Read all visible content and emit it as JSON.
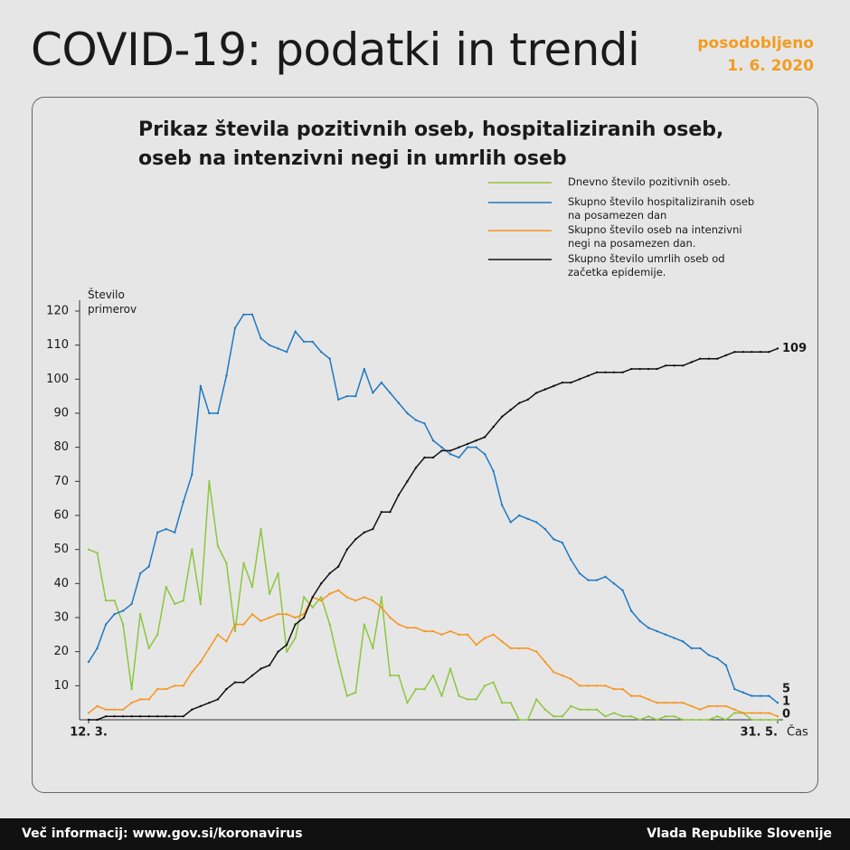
{
  "header": {
    "title": "COVID-19: podatki in trendi",
    "updated_label": "posodobljeno",
    "updated_date": "1. 6. 2020"
  },
  "chart_data": {
    "type": "line",
    "title": "Prikaz števila pozitivnih oseb, hospitaliziranih oseb, oseb na intenzivni negi in umrlih oseb",
    "y_label": "Število primerov",
    "x_label": "Čas",
    "categories": [
      "12. 3.",
      null,
      null,
      null,
      null,
      null,
      null,
      null,
      null,
      null,
      null,
      null,
      null,
      null,
      null,
      null,
      null,
      null,
      null,
      null,
      null,
      null,
      null,
      null,
      null,
      null,
      null,
      null,
      null,
      null,
      null,
      null,
      null,
      null,
      null,
      null,
      null,
      null,
      null,
      null,
      null,
      null,
      null,
      null,
      null,
      null,
      null,
      null,
      null,
      null,
      null,
      null,
      null,
      null,
      null,
      null,
      null,
      null,
      null,
      null,
      null,
      null,
      null,
      null,
      null,
      null,
      null,
      null,
      null,
      null,
      null,
      null,
      null,
      null,
      null,
      null,
      null,
      null,
      null,
      null,
      "31. 5."
    ],
    "ylim": [
      0,
      120
    ],
    "yticks": [
      10,
      20,
      30,
      40,
      50,
      60,
      70,
      80,
      90,
      100,
      110,
      120
    ],
    "series": [
      {
        "name": "Dnevno število pozitivnih oseb.",
        "color": "#8dc63f",
        "values": [
          50,
          49,
          35,
          35,
          28,
          9,
          31,
          21,
          25,
          39,
          34,
          35,
          50,
          34,
          70,
          51,
          46,
          26,
          46,
          39,
          56,
          37,
          43,
          20,
          24,
          36,
          33,
          36,
          28,
          17,
          7,
          8,
          28,
          21,
          36,
          13,
          13,
          5,
          9,
          9,
          13,
          7,
          15,
          7,
          6,
          6,
          10,
          11,
          5,
          5,
          0,
          0,
          6,
          3,
          1,
          1,
          4,
          3,
          3,
          3,
          1,
          2,
          1,
          1,
          0,
          1,
          0,
          1,
          1,
          0,
          0,
          0,
          0,
          1,
          0,
          2,
          2,
          0,
          0,
          0,
          0
        ]
      },
      {
        "name": "Skupno število hospitaliziranih oseb na posamezen dan",
        "color": "#1f78c1",
        "values": [
          17,
          21,
          28,
          31,
          32,
          34,
          43,
          45,
          55,
          56,
          55,
          64,
          72,
          98,
          90,
          90,
          101,
          115,
          119,
          119,
          112,
          110,
          109,
          108,
          114,
          111,
          111,
          108,
          106,
          94,
          95,
          95,
          103,
          96,
          99,
          96,
          93,
          90,
          88,
          87,
          82,
          80,
          78,
          77,
          80,
          80,
          78,
          73,
          63,
          58,
          60,
          59,
          58,
          56,
          53,
          52,
          47,
          43,
          41,
          41,
          42,
          40,
          38,
          32,
          29,
          27,
          26,
          25,
          24,
          23,
          21,
          21,
          19,
          18,
          16,
          9,
          8,
          7,
          7,
          7,
          5
        ]
      },
      {
        "name": "Skupno število oseb na intenzivni negi na posamezen dan.",
        "color": "#f7941d",
        "values": [
          2,
          4,
          3,
          3,
          3,
          5,
          6,
          6,
          9,
          9,
          10,
          10,
          14,
          17,
          21,
          25,
          23,
          28,
          28,
          31,
          29,
          30,
          31,
          31,
          30,
          31,
          36,
          35,
          37,
          38,
          36,
          35,
          36,
          35,
          33,
          30,
          28,
          27,
          27,
          26,
          26,
          25,
          26,
          25,
          25,
          22,
          24,
          25,
          23,
          21,
          21,
          21,
          20,
          17,
          14,
          13,
          12,
          10,
          10,
          10,
          10,
          9,
          9,
          7,
          7,
          6,
          5,
          5,
          5,
          5,
          4,
          3,
          4,
          4,
          4,
          3,
          2,
          2,
          2,
          2,
          1
        ]
      },
      {
        "name": "Skupno število umrlih oseb od začetka epidemije.",
        "color": "#111111",
        "values": [
          0,
          0,
          1,
          1,
          1,
          1,
          1,
          1,
          1,
          1,
          1,
          1,
          3,
          4,
          5,
          6,
          9,
          11,
          11,
          13,
          15,
          16,
          20,
          22,
          28,
          30,
          36,
          40,
          43,
          45,
          50,
          53,
          55,
          56,
          61,
          61,
          66,
          70,
          74,
          77,
          77,
          79,
          79,
          80,
          81,
          82,
          83,
          86,
          89,
          91,
          93,
          94,
          96,
          97,
          98,
          99,
          99,
          100,
          101,
          102,
          102,
          102,
          102,
          103,
          103,
          103,
          103,
          104,
          104,
          104,
          105,
          106,
          106,
          106,
          107,
          108,
          108,
          108,
          108,
          108,
          109
        ]
      }
    ]
  },
  "footer": {
    "left": "Več informacij: www.gov.si/koronavirus",
    "right": "Vlada Republike Slovenije"
  }
}
